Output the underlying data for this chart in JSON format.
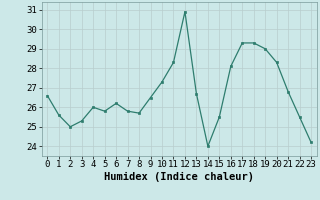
{
  "x": [
    0,
    1,
    2,
    3,
    4,
    5,
    6,
    7,
    8,
    9,
    10,
    11,
    12,
    13,
    14,
    15,
    16,
    17,
    18,
    19,
    20,
    21,
    22,
    23
  ],
  "y": [
    26.6,
    25.6,
    25.0,
    25.3,
    26.0,
    25.8,
    26.2,
    25.8,
    25.7,
    26.5,
    27.3,
    28.3,
    30.9,
    26.7,
    24.0,
    25.5,
    28.1,
    29.3,
    29.3,
    29.0,
    28.3,
    26.8,
    25.5,
    24.2
  ],
  "xlabel": "Humidex (Indice chaleur)",
  "ylabel_ticks": [
    24,
    25,
    26,
    27,
    28,
    29,
    30,
    31
  ],
  "xticks": [
    0,
    1,
    2,
    3,
    4,
    5,
    6,
    7,
    8,
    9,
    10,
    11,
    12,
    13,
    14,
    15,
    16,
    17,
    18,
    19,
    20,
    21,
    22,
    23
  ],
  "ylim": [
    23.5,
    31.4
  ],
  "xlim": [
    -0.5,
    23.5
  ],
  "line_color": "#2e7d6e",
  "marker_color": "#2e7d6e",
  "bg_color": "#cce8e8",
  "grid_color": "#b8cece",
  "label_fontsize": 7.5,
  "tick_fontsize": 6.5
}
